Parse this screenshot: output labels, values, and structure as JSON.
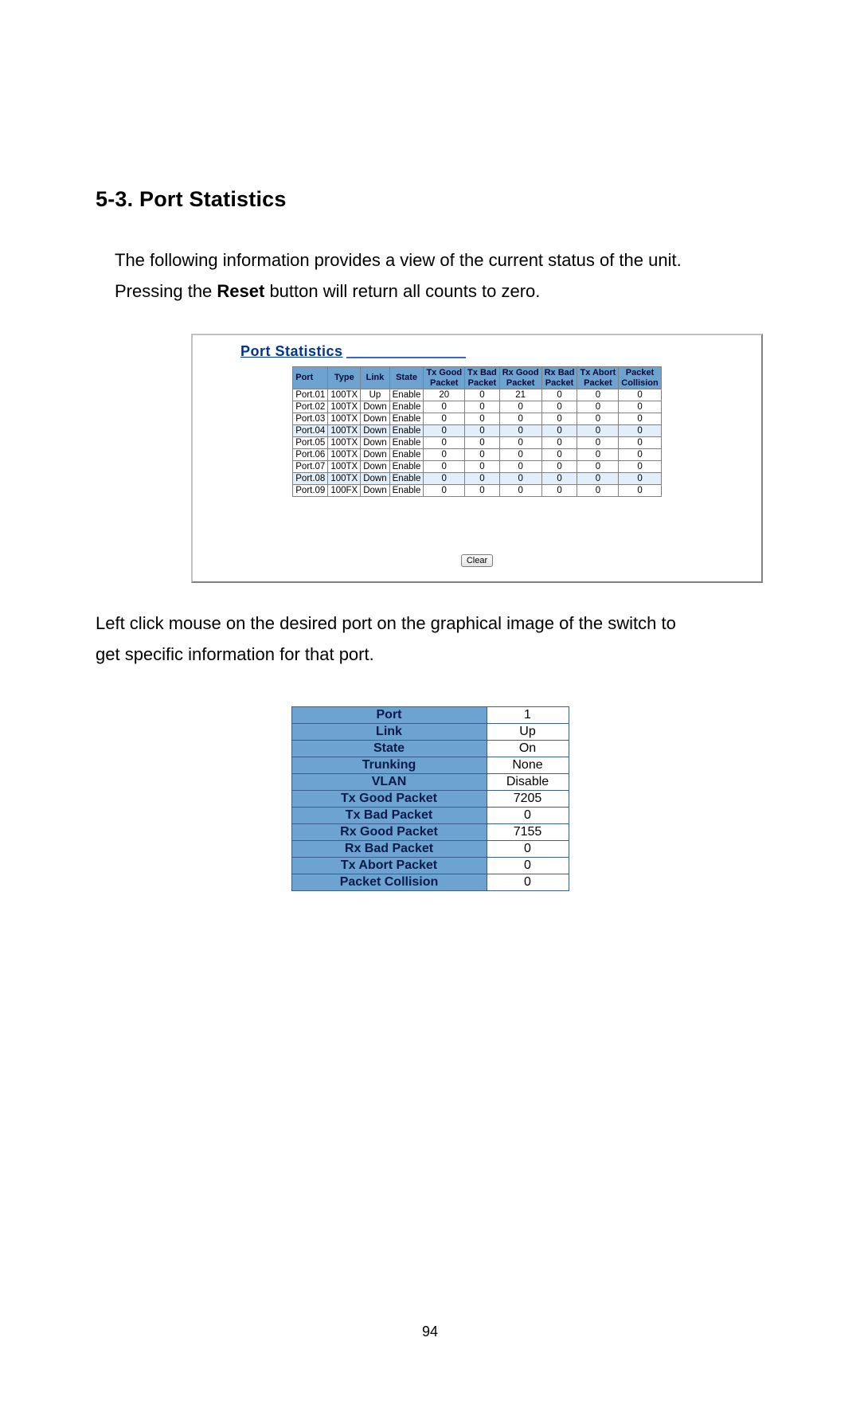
{
  "heading": "5-3. Port Statistics",
  "para1_a": "The following information provides a view of the current status of the unit.",
  "para1_b_pre": "Pressing the ",
  "para1_b_bold": "Reset",
  "para1_b_post": " button will return all counts to zero.",
  "stats_title": "Port Statistics",
  "stats_headers": {
    "port": "Port",
    "type": "Type",
    "link": "Link",
    "state": "State",
    "txgood_l1": "Tx Good",
    "txgood_l2": "Packet",
    "txbad_l1": "Tx Bad",
    "txbad_l2": "Packet",
    "rxgood_l1": "Rx Good",
    "rxgood_l2": "Packet",
    "rxbad_l1": "Rx Bad",
    "rxbad_l2": "Packet",
    "txabort_l1": "Tx Abort",
    "txabort_l2": "Packet",
    "coll_l1": "Packet",
    "coll_l2": "Collision"
  },
  "stats_rows": [
    {
      "port": "Port.01",
      "type": "100TX",
      "link": "Up",
      "state": "Enable",
      "txg": "20",
      "txb": "0",
      "rxg": "21",
      "rxb": "0",
      "txa": "0",
      "col": "0"
    },
    {
      "port": "Port.02",
      "type": "100TX",
      "link": "Down",
      "state": "Enable",
      "txg": "0",
      "txb": "0",
      "rxg": "0",
      "rxb": "0",
      "txa": "0",
      "col": "0"
    },
    {
      "port": "Port.03",
      "type": "100TX",
      "link": "Down",
      "state": "Enable",
      "txg": "0",
      "txb": "0",
      "rxg": "0",
      "rxb": "0",
      "txa": "0",
      "col": "0"
    },
    {
      "port": "Port.04",
      "type": "100TX",
      "link": "Down",
      "state": "Enable",
      "txg": "0",
      "txb": "0",
      "rxg": "0",
      "rxb": "0",
      "txa": "0",
      "col": "0"
    },
    {
      "port": "Port.05",
      "type": "100TX",
      "link": "Down",
      "state": "Enable",
      "txg": "0",
      "txb": "0",
      "rxg": "0",
      "rxb": "0",
      "txa": "0",
      "col": "0"
    },
    {
      "port": "Port.06",
      "type": "100TX",
      "link": "Down",
      "state": "Enable",
      "txg": "0",
      "txb": "0",
      "rxg": "0",
      "rxb": "0",
      "txa": "0",
      "col": "0"
    },
    {
      "port": "Port.07",
      "type": "100TX",
      "link": "Down",
      "state": "Enable",
      "txg": "0",
      "txb": "0",
      "rxg": "0",
      "rxb": "0",
      "txa": "0",
      "col": "0"
    },
    {
      "port": "Port.08",
      "type": "100TX",
      "link": "Down",
      "state": "Enable",
      "txg": "0",
      "txb": "0",
      "rxg": "0",
      "rxb": "0",
      "txa": "0",
      "col": "0"
    },
    {
      "port": "Port.09",
      "type": "100FX",
      "link": "Down",
      "state": "Enable",
      "txg": "0",
      "txb": "0",
      "rxg": "0",
      "rxb": "0",
      "txa": "0",
      "col": "0"
    }
  ],
  "stats_alt_rows": [
    3,
    7
  ],
  "clear_label": "Clear",
  "para2_a": "Left click mouse on the desired port on the graphical image of the switch to",
  "para2_b": "get specific information for that port.",
  "detail_rows": [
    {
      "label": "Port",
      "value": "1"
    },
    {
      "label": "Link",
      "value": "Up"
    },
    {
      "label": "State",
      "value": "On"
    },
    {
      "label": "Trunking",
      "value": "None"
    },
    {
      "label": "VLAN",
      "value": "Disable"
    },
    {
      "label": "Tx Good Packet",
      "value": "7205"
    },
    {
      "label": "Tx Bad Packet",
      "value": "0"
    },
    {
      "label": "Rx Good Packet",
      "value": "7155"
    },
    {
      "label": "Rx Bad Packet",
      "value": "0"
    },
    {
      "label": "Tx Abort Packet",
      "value": "0"
    },
    {
      "label": "Packet Collision",
      "value": "0"
    }
  ],
  "page_number": "94",
  "colors": {
    "header_bg": "#6da3d1",
    "header_text": "#0a1a4a",
    "border": "#808080",
    "alt_row": "#e2eef9",
    "title_color": "#003399",
    "title_line": "#3366cc"
  }
}
